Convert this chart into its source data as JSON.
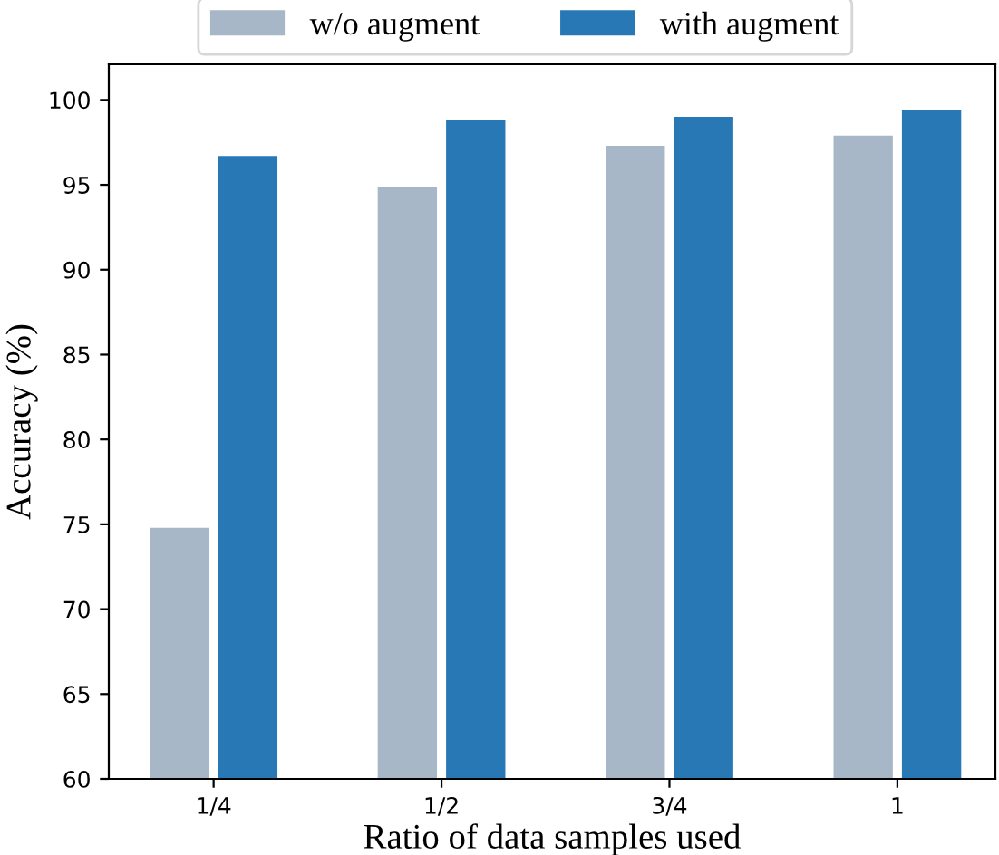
{
  "chart_data": {
    "type": "bar",
    "xlabel": "Ratio of data samples used",
    "ylabel": "Accuracy (%)",
    "categories": [
      "1/4",
      "1/2",
      "3/4",
      "1"
    ],
    "series": [
      {
        "name": "w/o augment",
        "color": "#a8b7c7",
        "values": [
          74.8,
          94.9,
          97.3,
          97.9
        ]
      },
      {
        "name": "with augment",
        "color": "#2878b5",
        "values": [
          96.7,
          98.8,
          99.0,
          99.4
        ]
      }
    ],
    "ylim": [
      60,
      102.1
    ],
    "yticks": [
      60,
      65,
      70,
      75,
      80,
      85,
      90,
      95,
      100
    ],
    "grid": false,
    "legend": "top"
  }
}
